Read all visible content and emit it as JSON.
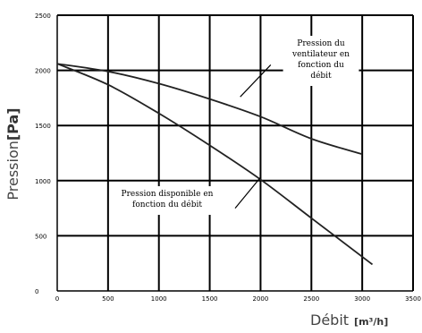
{
  "chart_data": {
    "type": "line",
    "xlabel": "Débit",
    "xlabel_unit": "[m³/h]",
    "ylabel": "Pression",
    "ylabel_unit": "[Pa]",
    "xlim": [
      0,
      3500
    ],
    "ylim": [
      0,
      2500
    ],
    "xticks": [
      0,
      500,
      1000,
      1500,
      2000,
      2500,
      3000,
      3500
    ],
    "yticks": [
      0,
      500,
      1000,
      1500,
      2000,
      2500
    ],
    "grid": true,
    "series": [
      {
        "name": "Pression du ventilateur en fonction du débit",
        "x": [
          0,
          500,
          1000,
          1500,
          2000,
          2500,
          3000
        ],
        "y": [
          2060,
          1990,
          1880,
          1740,
          1580,
          1380,
          1240
        ]
      },
      {
        "name": "Pression disponible en fonction du débit",
        "x": [
          0,
          500,
          1000,
          1500,
          2000,
          2500,
          3100
        ],
        "y": [
          2060,
          1870,
          1610,
          1320,
          1010,
          660,
          240
        ]
      }
    ],
    "annotations": [
      {
        "lines": [
          "Pression du",
          "ventilateur en",
          "fonction du",
          "débit"
        ],
        "pointer": {
          "from": [
            1800,
            1760
          ],
          "to": [
            2100,
            2050
          ]
        }
      },
      {
        "lines": [
          "Pression disponible en",
          "fonction du débit"
        ],
        "pointer": {
          "from": [
            1750,
            750
          ],
          "to": [
            2000,
            1030
          ]
        }
      }
    ]
  }
}
